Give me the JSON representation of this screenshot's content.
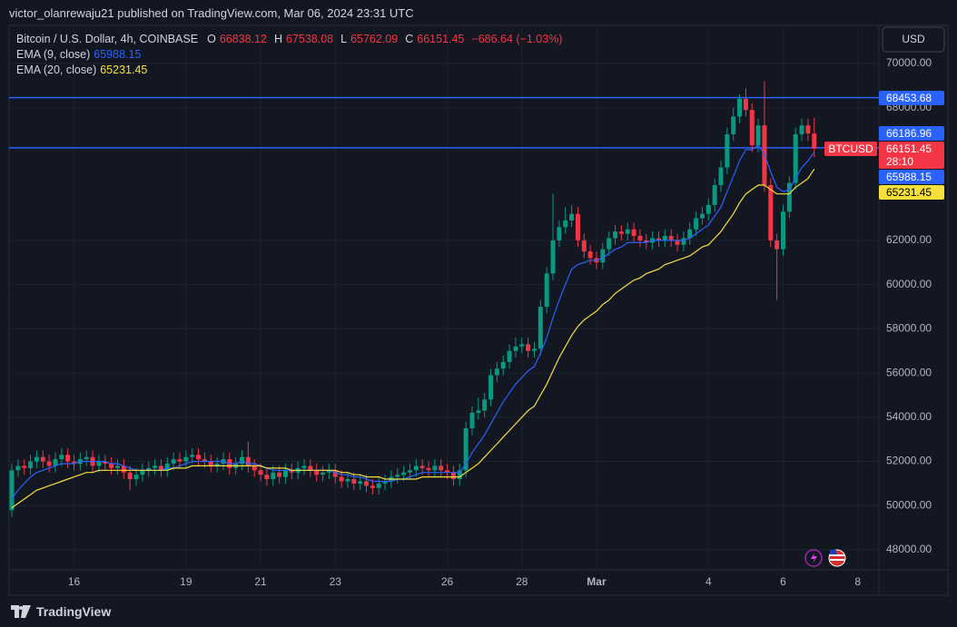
{
  "header": "victor_olanrewaju21 published on TradingView.com, Mar 06, 2024 23:31 UTC",
  "footer": "TradingView",
  "chart_data": {
    "type": "candlestick",
    "title": "Bitcoin / U.S. Dollar, 4h, COINBASE",
    "ohlc_letters": [
      "O",
      "H",
      "L",
      "C"
    ],
    "change": "−686.64 (−1.03%)",
    "currency": "USD",
    "symbol": "BTCUSD",
    "countdown": "28:10",
    "up_color": "#089981",
    "down_color": "#f23645",
    "open": [
      49800,
      51600,
      51800,
      51700,
      52000,
      52200,
      52000,
      51800,
      52100,
      52300,
      52000,
      51900,
      52100,
      52200,
      51800,
      52000,
      51900,
      51700,
      51800,
      51500,
      51200,
      51400,
      51600,
      51700,
      51800,
      51600,
      51900,
      52100,
      52000,
      52200,
      52300,
      52100,
      52000,
      51800,
      51900,
      52100,
      51700,
      51900,
      52200,
      51800,
      51600,
      51400,
      51200,
      51500,
      51300,
      51600,
      51500,
      51700,
      51800,
      51600,
      51400,
      51500,
      51600,
      51300,
      51100,
      51200,
      51000,
      51100,
      50900,
      50800,
      51000,
      51100,
      51300,
      51400,
      51500,
      51600,
      51800,
      51700,
      51600,
      51800,
      51600,
      51500,
      51200,
      51600,
      53500,
      54200,
      54300,
      54800,
      55900,
      56200,
      56500,
      57000,
      57200,
      57300,
      57000,
      57100,
      59000,
      60500,
      62000,
      62600,
      62900,
      63200,
      62000,
      61500,
      61200,
      61000,
      61600,
      62100,
      62400,
      62300,
      62500,
      62200,
      62000,
      61900,
      62100,
      62000,
      62200,
      62000,
      61800,
      62100,
      62500,
      63000,
      63200,
      63600,
      64500,
      65300,
      66800,
      67600,
      68400,
      67900,
      66300,
      67200,
      64500,
      62000,
      61600,
      63300,
      64600,
      66800,
      67200,
      66838.12
    ],
    "high": [
      51900,
      52100,
      52100,
      52300,
      52500,
      52500,
      52300,
      52400,
      52600,
      52600,
      52300,
      52400,
      52500,
      52500,
      52300,
      52300,
      52200,
      52100,
      52100,
      51800,
      51700,
      51900,
      52000,
      52100,
      52100,
      52200,
      52400,
      52400,
      52500,
      52600,
      52600,
      52400,
      52300,
      52200,
      52400,
      52400,
      52200,
      52500,
      52900,
      52100,
      51900,
      51700,
      51800,
      51800,
      51900,
      51900,
      52000,
      52100,
      52100,
      51900,
      51800,
      51900,
      51900,
      51600,
      51500,
      51500,
      51400,
      51400,
      51200,
      51300,
      51400,
      51600,
      51700,
      51800,
      51900,
      52100,
      52100,
      52000,
      52100,
      52100,
      51900,
      51800,
      51900,
      53800,
      54500,
      54900,
      55100,
      56200,
      56500,
      56800,
      57300,
      57600,
      57600,
      57600,
      57400,
      59300,
      60800,
      64100,
      62900,
      63500,
      63600,
      63500,
      62300,
      61800,
      61500,
      61900,
      62400,
      62700,
      62700,
      62800,
      62800,
      62500,
      62300,
      62400,
      62400,
      62500,
      62500,
      62300,
      62400,
      62800,
      63300,
      63500,
      63900,
      64800,
      65600,
      67100,
      68000,
      68600,
      68900,
      68200,
      67500,
      69200,
      64800,
      62300,
      63600,
      64900,
      67100,
      67500,
      67500,
      67538.08
    ],
    "low": [
      49500,
      51300,
      51400,
      51400,
      51700,
      51700,
      51500,
      51500,
      51800,
      51700,
      51600,
      51600,
      51800,
      51500,
      51500,
      51600,
      51400,
      51400,
      51200,
      50700,
      50900,
      51100,
      51300,
      51400,
      51300,
      51300,
      51600,
      51700,
      51700,
      51900,
      51800,
      51700,
      51500,
      51500,
      51600,
      51400,
      51400,
      51600,
      51500,
      51300,
      51100,
      50900,
      50900,
      51000,
      51000,
      51200,
      51200,
      51400,
      51300,
      51100,
      51100,
      51200,
      51000,
      50800,
      50800,
      50700,
      50700,
      50600,
      50500,
      50500,
      50700,
      50800,
      51000,
      51100,
      51200,
      51300,
      51400,
      51300,
      51300,
      51300,
      51200,
      50900,
      50900,
      51300,
      53200,
      53900,
      54000,
      54500,
      55600,
      55900,
      56200,
      56700,
      56900,
      56700,
      56700,
      56800,
      58700,
      60200,
      61700,
      62300,
      62600,
      61700,
      61200,
      60900,
      60700,
      60700,
      61300,
      61800,
      62000,
      62000,
      61900,
      61700,
      61600,
      61600,
      61700,
      61700,
      61700,
      61500,
      61500,
      61800,
      62200,
      62700,
      62900,
      63300,
      64200,
      65000,
      66500,
      67300,
      67600,
      66000,
      66000,
      64200,
      61700,
      59300,
      61300,
      63000,
      64300,
      66500,
      66500,
      65762.09
    ],
    "close": [
      51600,
      51800,
      51700,
      52000,
      52200,
      52000,
      51800,
      52100,
      52300,
      52000,
      51900,
      52100,
      52200,
      51800,
      52000,
      51900,
      51700,
      51800,
      51500,
      51200,
      51400,
      51600,
      51700,
      51800,
      51600,
      51900,
      52100,
      52000,
      52200,
      52300,
      52100,
      52000,
      51800,
      51900,
      52100,
      51700,
      51900,
      52200,
      51800,
      51600,
      51400,
      51200,
      51500,
      51300,
      51600,
      51500,
      51700,
      51800,
      51600,
      51400,
      51500,
      51600,
      51300,
      51100,
      51200,
      51000,
      51100,
      50900,
      50800,
      51000,
      51100,
      51300,
      51400,
      51500,
      51600,
      51800,
      51700,
      51600,
      51800,
      51600,
      51500,
      51200,
      51600,
      53500,
      54200,
      54300,
      54800,
      55900,
      56200,
      56500,
      57000,
      57200,
      57300,
      57000,
      57100,
      59000,
      60500,
      62000,
      62600,
      62900,
      63200,
      62000,
      61500,
      61200,
      61000,
      61600,
      62100,
      62400,
      62300,
      62500,
      62200,
      62000,
      61900,
      62100,
      62000,
      62200,
      62000,
      61800,
      62100,
      62500,
      63000,
      63200,
      63600,
      64500,
      65300,
      66800,
      67600,
      68400,
      67900,
      66300,
      67200,
      64500,
      62000,
      61600,
      63300,
      64600,
      66800,
      67200,
      66838.12,
      66151.45
    ],
    "series": [
      {
        "name": "EMA (9, close)",
        "color": "#2962ff",
        "values": [
          50300,
          50700,
          51000,
          51300,
          51500,
          51600,
          51700,
          51800,
          51900,
          51900,
          51900,
          52000,
          52000,
          52000,
          52000,
          52000,
          51900,
          51900,
          51800,
          51700,
          51600,
          51600,
          51600,
          51600,
          51600,
          51700,
          51700,
          51800,
          51900,
          52000,
          52000,
          52000,
          52000,
          52000,
          52000,
          51900,
          51900,
          52000,
          51900,
          51900,
          51800,
          51700,
          51600,
          51600,
          51600,
          51600,
          51600,
          51600,
          51600,
          51600,
          51600,
          51600,
          51500,
          51400,
          51400,
          51300,
          51300,
          51200,
          51100,
          51100,
          51100,
          51100,
          51200,
          51200,
          51300,
          51400,
          51500,
          51500,
          51500,
          51500,
          51500,
          51500,
          51500,
          51900,
          52400,
          52800,
          53200,
          53700,
          54200,
          54700,
          55100,
          55500,
          55800,
          56100,
          56300,
          56900,
          57600,
          58500,
          59300,
          60000,
          60700,
          60900,
          61000,
          61100,
          61100,
          61200,
          61400,
          61600,
          61700,
          61900,
          61900,
          61900,
          61900,
          62000,
          62000,
          62000,
          62000,
          62000,
          62000,
          62100,
          62300,
          62500,
          62700,
          63100,
          63500,
          64200,
          64900,
          65600,
          66100,
          66100,
          66300,
          65900,
          65100,
          64400,
          64200,
          64300,
          64800,
          65300,
          65600,
          65988.15
        ]
      },
      {
        "name": "EMA (20, close)",
        "color": "#f5e03b",
        "values": [
          49900,
          50100,
          50300,
          50500,
          50700,
          50800,
          50900,
          51000,
          51100,
          51200,
          51300,
          51400,
          51500,
          51500,
          51600,
          51600,
          51600,
          51600,
          51600,
          51600,
          51600,
          51600,
          51600,
          51600,
          51600,
          51600,
          51700,
          51700,
          51700,
          51800,
          51800,
          51800,
          51800,
          51800,
          51800,
          51800,
          51800,
          51800,
          51800,
          51800,
          51800,
          51700,
          51700,
          51700,
          51700,
          51600,
          51600,
          51600,
          51600,
          51600,
          51600,
          51600,
          51600,
          51500,
          51500,
          51400,
          51400,
          51300,
          51300,
          51300,
          51200,
          51200,
          51200,
          51200,
          51200,
          51200,
          51300,
          51300,
          51300,
          51300,
          51300,
          51300,
          51300,
          51500,
          51700,
          51900,
          52200,
          52500,
          52800,
          53100,
          53400,
          53700,
          54000,
          54300,
          54500,
          55000,
          55500,
          56100,
          56700,
          57200,
          57700,
          58100,
          58400,
          58600,
          58800,
          59100,
          59300,
          59600,
          59800,
          60000,
          60200,
          60300,
          60500,
          60600,
          60700,
          60900,
          61000,
          61100,
          61200,
          61300,
          61500,
          61700,
          61800,
          62100,
          62400,
          62800,
          63200,
          63700,
          64100,
          64300,
          64500,
          64500,
          64300,
          64100,
          64100,
          64100,
          64400,
          64600,
          64800,
          65231.45
        ]
      }
    ],
    "hlines": [
      {
        "value": 68453.68,
        "color": "#2962ff"
      },
      {
        "value": 66186.96,
        "color": "#2962ff"
      }
    ],
    "xlim": [
      -0.44,
      139.4
    ],
    "ylim": [
      47097,
      71724
    ],
    "xticks": [
      {
        "value": 10,
        "label": "16"
      },
      {
        "value": 28,
        "label": "19"
      },
      {
        "value": 40,
        "label": "21"
      },
      {
        "value": 52,
        "label": "23"
      },
      {
        "value": 70,
        "label": "26"
      },
      {
        "value": 82,
        "label": "28"
      },
      {
        "value": 94,
        "label": "Mar"
      },
      {
        "value": 112,
        "label": "4"
      },
      {
        "value": 124,
        "label": "6"
      },
      {
        "value": 136,
        "label": "8"
      }
    ],
    "yticks": [
      {
        "value": 48000,
        "label": "48000.00"
      },
      {
        "value": 50000,
        "label": "50000.00"
      },
      {
        "value": 52000,
        "label": "52000.00"
      },
      {
        "value": 54000,
        "label": "54000.00"
      },
      {
        "value": 56000,
        "label": "56000.00"
      },
      {
        "value": 58000,
        "label": "58000.00"
      },
      {
        "value": 60000,
        "label": "60000.00"
      },
      {
        "value": 62000,
        "label": "62000.00"
      },
      {
        "value": 68000,
        "label": "68000.00"
      },
      {
        "value": 70000,
        "label": "70000.00"
      }
    ],
    "grid": true
  }
}
